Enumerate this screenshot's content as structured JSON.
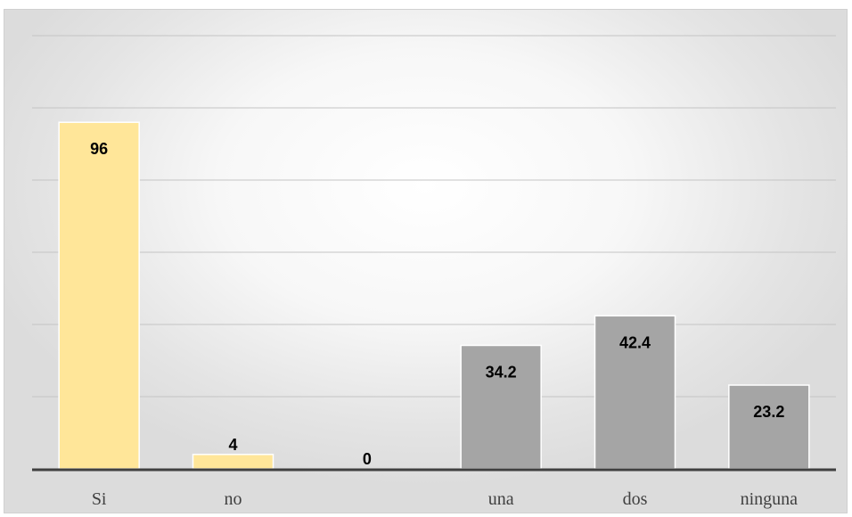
{
  "chart_data": {
    "type": "bar",
    "categories": [
      "Si",
      "no",
      "",
      "una",
      "dos",
      "ninguna"
    ],
    "values": [
      96,
      4,
      0,
      34.2,
      42.4,
      23.2
    ],
    "value_labels": [
      "96",
      "4",
      "0",
      "34.2",
      "42.4",
      "23.2"
    ],
    "bar_colors": [
      "#ffe699",
      "#ffe699",
      "#ffe699",
      "#a5a5a5",
      "#a5a5a5",
      "#a5a5a5"
    ],
    "ylim": [
      0,
      120
    ],
    "y_gridline_step": 20,
    "grid": true,
    "title": "",
    "xlabel": "",
    "ylabel": "",
    "legend": "none"
  }
}
